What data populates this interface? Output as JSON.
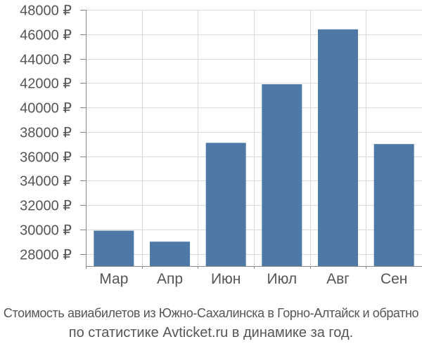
{
  "chart_data": {
    "type": "bar",
    "categories": [
      "Мар",
      "Апр",
      "Июн",
      "Июл",
      "Авг",
      "Сен"
    ],
    "values": [
      29900,
      29000,
      37100,
      41900,
      46400,
      37000
    ],
    "ylim": [
      27000,
      48000
    ],
    "yticks": [
      28000,
      30000,
      32000,
      34000,
      36000,
      38000,
      40000,
      42000,
      44000,
      46000,
      48000
    ],
    "ytick_labels": [
      "28000 ₽",
      "30000 ₽",
      "32000 ₽",
      "34000 ₽",
      "36000 ₽",
      "38000 ₽",
      "40000 ₽",
      "42000 ₽",
      "44000 ₽",
      "46000 ₽",
      "48000 ₽"
    ],
    "grid": true,
    "bar_color": "#4e79a7",
    "grid_color": "#d9d9d9",
    "axis_color": "#888888"
  },
  "caption": {
    "line1": "Стоимость авиабилетов из Южно-Сахалинска в Горно-Алтайск и обратно",
    "line2": "по статистике Avticket.ru в динамике за год."
  }
}
